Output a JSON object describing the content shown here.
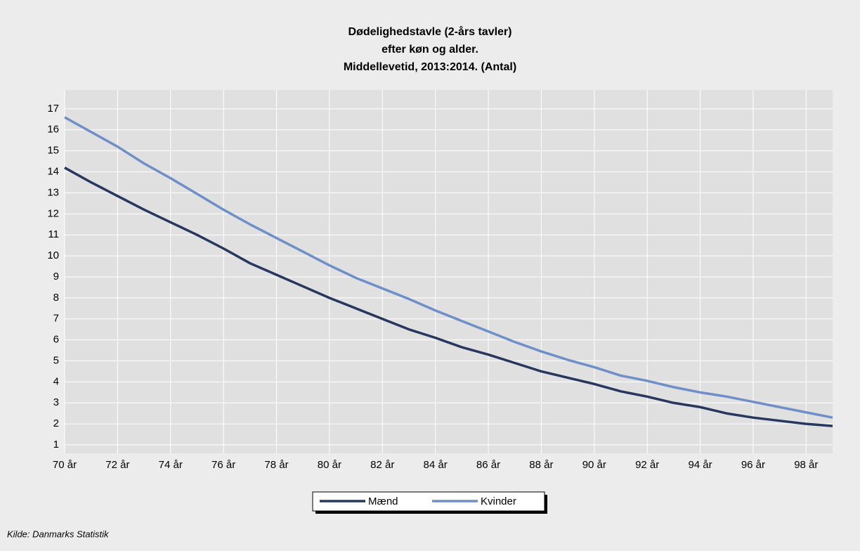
{
  "chart_data": {
    "type": "line",
    "title": [
      "Dødelighedstavle (2-års tavler)",
      "efter køn og alder.",
      "Middellevetid, 2013:2014. (Antal)"
    ],
    "categories": [
      "70 år",
      null,
      "72 år",
      null,
      "74 år",
      null,
      "76 år",
      null,
      "78 år",
      null,
      "80 år",
      null,
      "82 år",
      null,
      "84 år",
      null,
      "86 år",
      null,
      "88 år",
      null,
      "90 år",
      null,
      "92 år",
      null,
      "94 år",
      null,
      "96 år",
      null,
      "98 år",
      null
    ],
    "series": [
      {
        "name": "Mænd",
        "color": "#27375e",
        "values": [
          14.2,
          13.5,
          12.85,
          12.2,
          11.6,
          11.0,
          10.35,
          9.65,
          9.1,
          8.55,
          8.0,
          7.5,
          7.0,
          6.5,
          6.1,
          5.65,
          5.3,
          4.9,
          4.5,
          4.2,
          3.9,
          3.55,
          3.3,
          3.0,
          2.8,
          2.5,
          2.3,
          2.15,
          2.0,
          1.9
        ]
      },
      {
        "name": "Kvinder",
        "color": "#6f8fc9",
        "values": [
          16.6,
          15.9,
          15.2,
          14.4,
          13.7,
          12.95,
          12.2,
          11.5,
          10.85,
          10.2,
          9.55,
          8.95,
          8.45,
          7.95,
          7.4,
          6.9,
          6.4,
          5.9,
          5.45,
          5.05,
          4.7,
          4.3,
          4.05,
          3.75,
          3.5,
          3.3,
          3.05,
          2.8,
          2.55,
          2.3
        ]
      }
    ],
    "ylim": [
      0.6,
      17.9
    ],
    "yticks": [
      1,
      2,
      3,
      4,
      5,
      6,
      7,
      8,
      9,
      10,
      11,
      12,
      13,
      14,
      15,
      16,
      17
    ],
    "grid": true,
    "legend": "bottom",
    "source": "Kilde: Danmarks Statistik"
  }
}
